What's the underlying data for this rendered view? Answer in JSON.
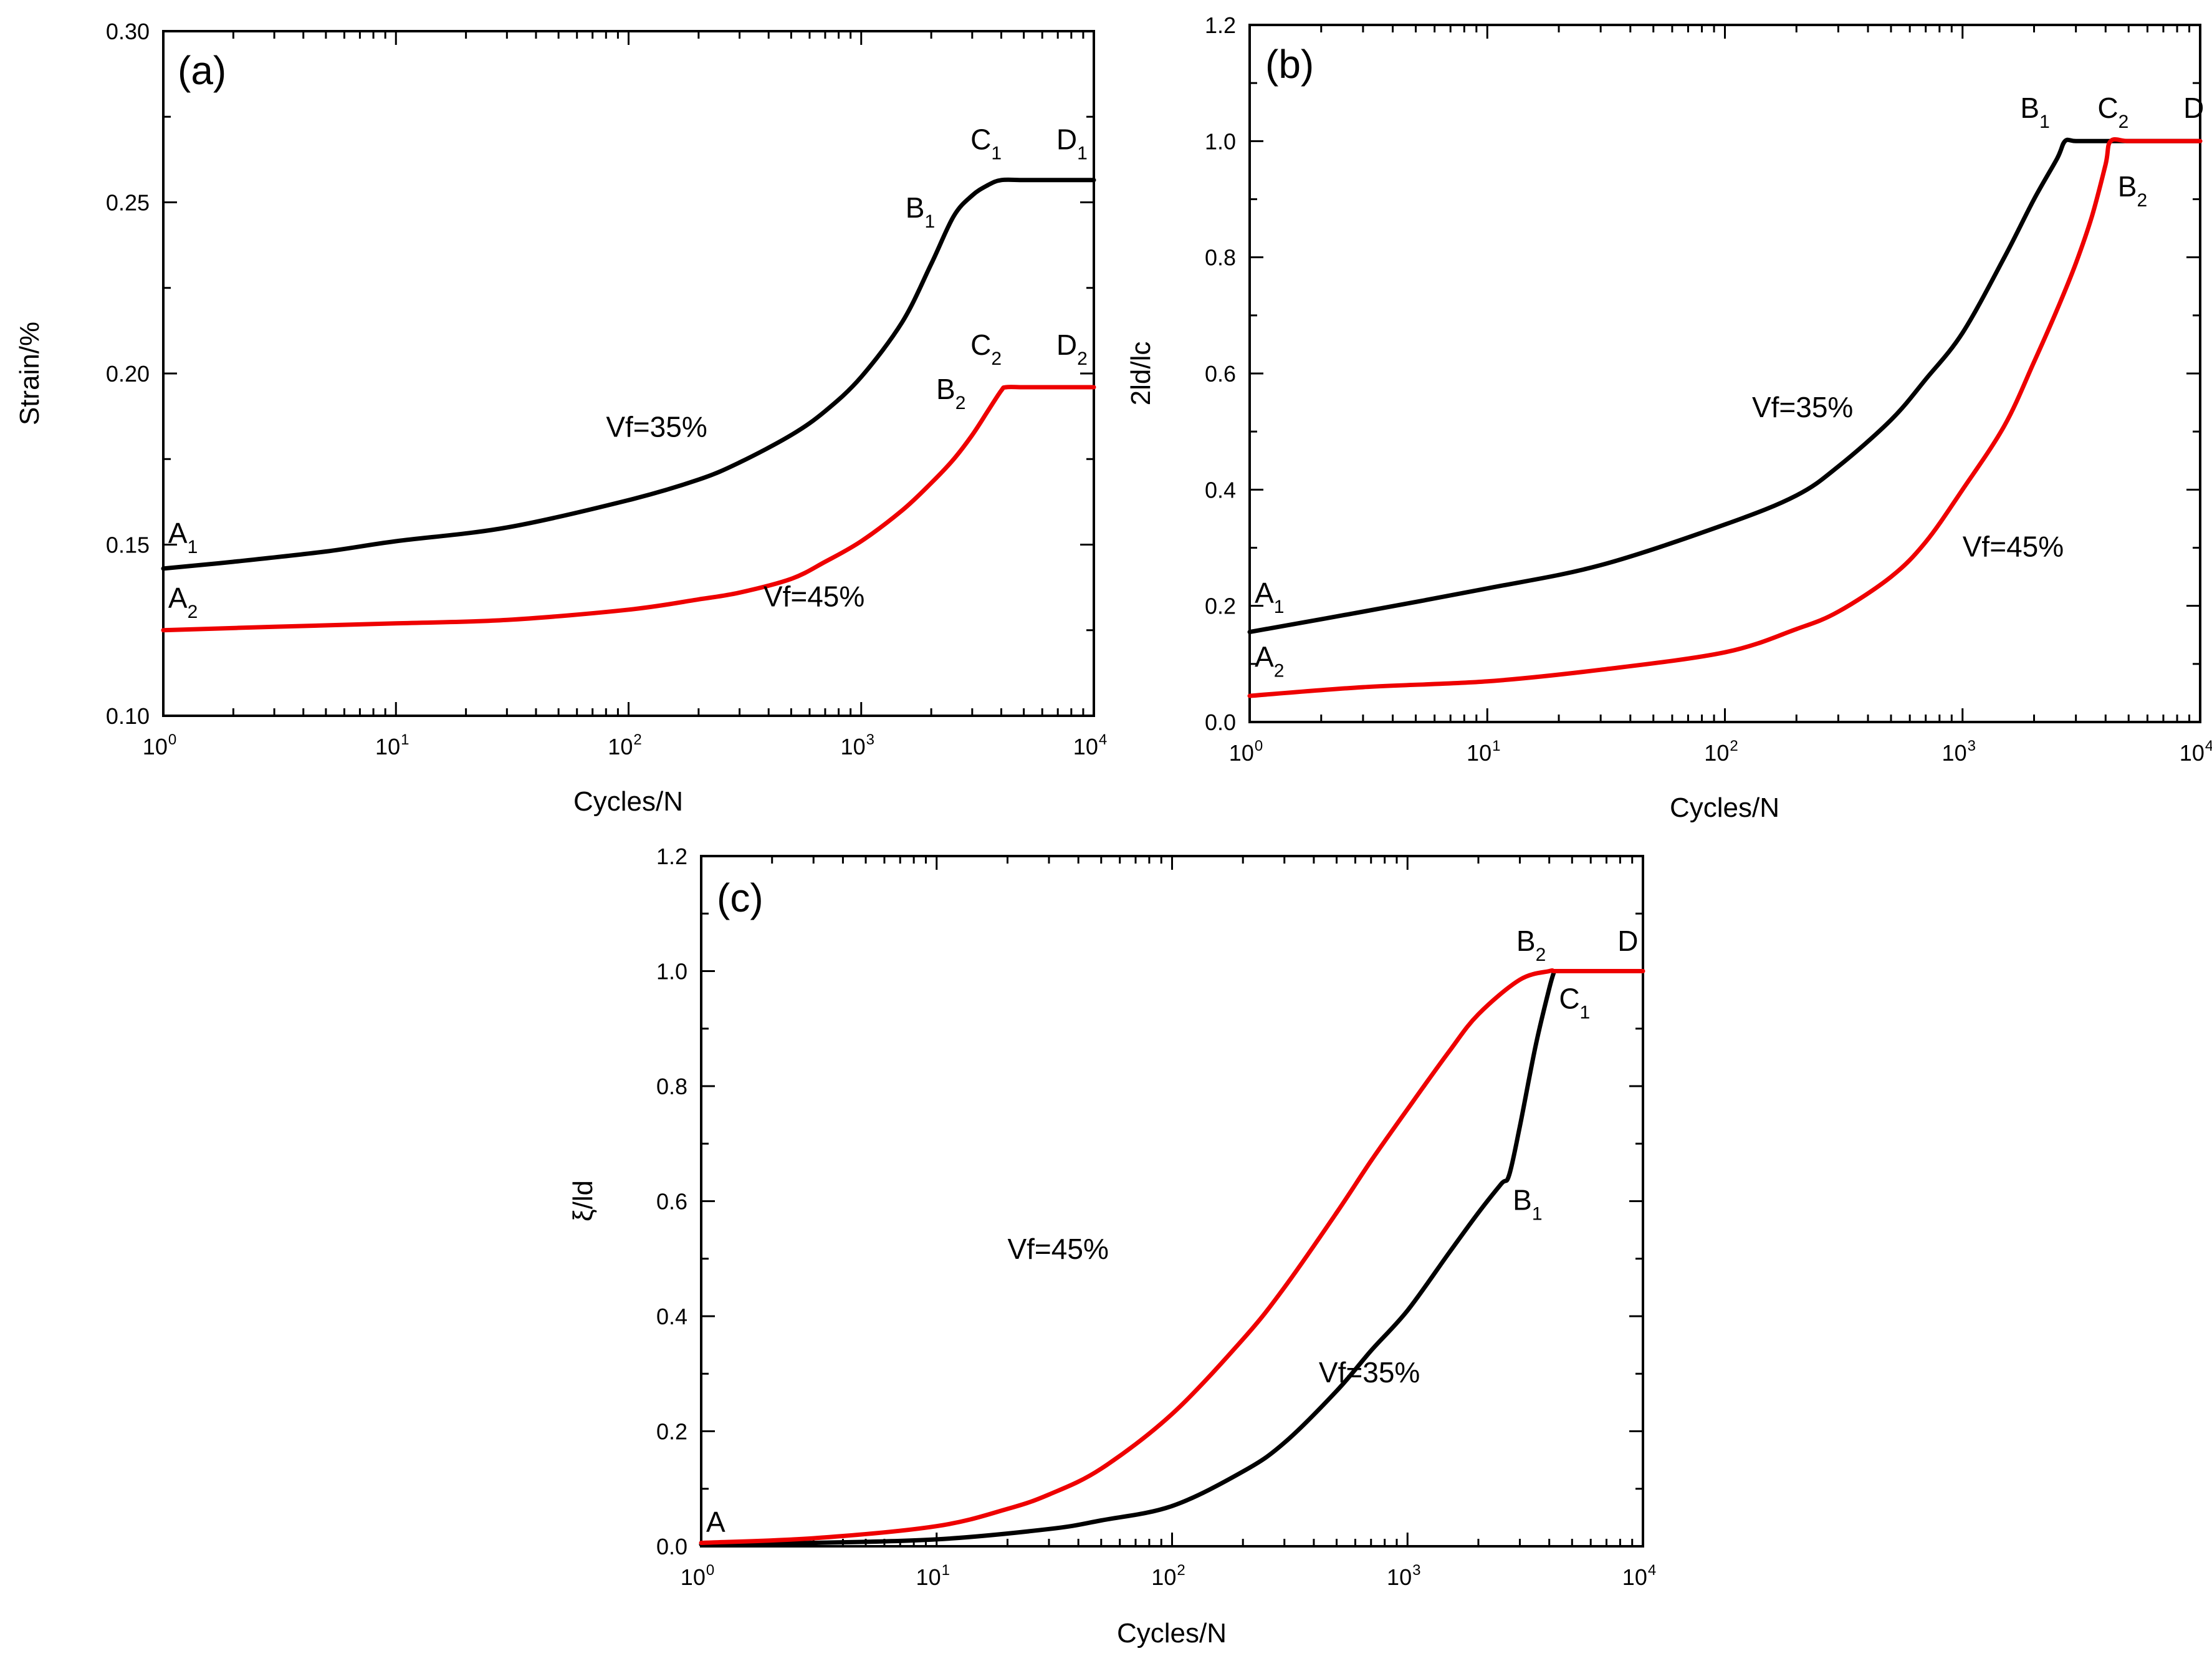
{
  "colors": {
    "black_series": "#000000",
    "red_series": "#ee0000"
  },
  "chart_data": [
    {
      "panel": "(a)",
      "type": "line",
      "xscale": "log",
      "xlabel": "Cycles/N",
      "ylabel": "Strain/%",
      "xlim": [
        1,
        10000
      ],
      "ylim": [
        0.1,
        0.3
      ],
      "xticks": [
        {
          "base": "10",
          "exp": "0",
          "value": 1
        },
        {
          "base": "10",
          "exp": "1",
          "value": 10
        },
        {
          "base": "10",
          "exp": "2",
          "value": 100
        },
        {
          "base": "10",
          "exp": "3",
          "value": 1000
        },
        {
          "base": "10",
          "exp": "4",
          "value": 10000
        }
      ],
      "yticks": [
        "0.10",
        "0.15",
        "0.20",
        "0.25",
        "0.30"
      ],
      "series": [
        {
          "name": "Vf=35%",
          "color": "#000000",
          "x": [
            1,
            2,
            5,
            10,
            30,
            100,
            200,
            300,
            500,
            700,
            1000,
            1500,
            2000,
            2500,
            3000,
            3500,
            4000,
            5000,
            7000,
            10000
          ],
          "y": [
            0.143,
            0.145,
            0.148,
            0.151,
            0.155,
            0.163,
            0.169,
            0.174,
            0.182,
            0.189,
            0.199,
            0.215,
            0.232,
            0.246,
            0.252,
            0.255,
            0.2565,
            0.2565,
            0.2565,
            0.2565
          ]
        },
        {
          "name": "Vf=45%",
          "color": "#ee0000",
          "x": [
            1,
            3,
            10,
            30,
            100,
            200,
            300,
            500,
            700,
            1000,
            1500,
            2000,
            2500,
            3000,
            3500,
            4000,
            4200,
            5000,
            7000,
            10000
          ],
          "y": [
            0.125,
            0.126,
            0.127,
            0.128,
            0.131,
            0.134,
            0.136,
            0.14,
            0.145,
            0.151,
            0.16,
            0.168,
            0.175,
            0.182,
            0.189,
            0.195,
            0.196,
            0.196,
            0.196,
            0.196
          ]
        }
      ],
      "annotations": [
        {
          "main": "A",
          "sub": "1",
          "x": 1.05,
          "y": 0.1505
        },
        {
          "main": "A",
          "sub": "2",
          "x": 1.05,
          "y": 0.1315
        },
        {
          "main": "B",
          "sub": "1",
          "x": 1550,
          "y": 0.2455
        },
        {
          "main": "C",
          "sub": "1",
          "x": 2950,
          "y": 0.2655
        },
        {
          "main": "D",
          "sub": "1",
          "x": 6900,
          "y": 0.2655
        },
        {
          "main": "C",
          "sub": "2",
          "x": 2950,
          "y": 0.2055
        },
        {
          "main": "B",
          "sub": "2",
          "x": 2100,
          "y": 0.1925
        },
        {
          "main": "D",
          "sub": "2",
          "x": 6900,
          "y": 0.2055
        },
        {
          "main": "Vf=35%",
          "sub": "",
          "x": 80,
          "y": 0.1815
        },
        {
          "main": "Vf=45%",
          "sub": "",
          "x": 380,
          "y": 0.132
        }
      ]
    },
    {
      "panel": "(b)",
      "type": "line",
      "xscale": "log",
      "xlabel": "Cycles/N",
      "ylabel": "2ld/lc",
      "xlim": [
        1,
        10000
      ],
      "ylim": [
        0.0,
        1.2
      ],
      "xticks": [
        {
          "base": "10",
          "exp": "0",
          "value": 1
        },
        {
          "base": "10",
          "exp": "1",
          "value": 10
        },
        {
          "base": "10",
          "exp": "2",
          "value": 100
        },
        {
          "base": "10",
          "exp": "3",
          "value": 1000
        },
        {
          "base": "10",
          "exp": "4",
          "value": 10000
        }
      ],
      "yticks": [
        "0.0",
        "0.2",
        "0.4",
        "0.6",
        "0.8",
        "1.0",
        "1.2"
      ],
      "series": [
        {
          "name": "Vf=35%",
          "color": "#000000",
          "x": [
            1,
            3,
            10,
            30,
            100,
            200,
            300,
            500,
            700,
            1000,
            1500,
            2000,
            2500,
            2700,
            3000,
            4000,
            5000,
            7000,
            10000
          ],
          "y": [
            0.155,
            0.19,
            0.23,
            0.27,
            0.34,
            0.39,
            0.44,
            0.52,
            0.59,
            0.67,
            0.8,
            0.9,
            0.97,
            1.0,
            1.0,
            1.0,
            1.0,
            1.0,
            1.0
          ]
        },
        {
          "name": "Vf=45%",
          "color": "#ee0000",
          "x": [
            1,
            3,
            10,
            30,
            100,
            200,
            300,
            500,
            700,
            1000,
            1500,
            2000,
            2500,
            3000,
            3500,
            4000,
            4200,
            5000,
            7000,
            10000
          ],
          "y": [
            0.045,
            0.06,
            0.07,
            0.09,
            0.12,
            0.16,
            0.19,
            0.25,
            0.31,
            0.4,
            0.51,
            0.62,
            0.71,
            0.79,
            0.87,
            0.96,
            1.0,
            1.0,
            1.0,
            1.0
          ]
        }
      ],
      "annotations": [
        {
          "main": "A",
          "sub": "1",
          "x": 1.05,
          "y": 0.205
        },
        {
          "main": "A",
          "sub": "2",
          "x": 1.05,
          "y": 0.095
        },
        {
          "main": "B",
          "sub": "1",
          "x": 1750,
          "y": 1.04
        },
        {
          "main": "C",
          "sub": "2",
          "x": 3700,
          "y": 1.04
        },
        {
          "main": "D",
          "sub": "",
          "x": 8500,
          "y": 1.04
        },
        {
          "main": "B",
          "sub": "2",
          "x": 4500,
          "y": 0.905
        },
        {
          "main": "Vf=35%",
          "sub": "",
          "x": 130,
          "y": 0.525
        },
        {
          "main": "Vf=45%",
          "sub": "",
          "x": 1000,
          "y": 0.285
        }
      ]
    },
    {
      "panel": "(c)",
      "type": "line",
      "xscale": "log",
      "xlabel": "Cycles/N",
      "ylabel": "ξ/ld",
      "xlim": [
        1,
        10000
      ],
      "ylim": [
        0.0,
        1.2
      ],
      "xticks": [
        {
          "base": "10",
          "exp": "0",
          "value": 1
        },
        {
          "base": "10",
          "exp": "1",
          "value": 10
        },
        {
          "base": "10",
          "exp": "2",
          "value": 100
        },
        {
          "base": "10",
          "exp": "3",
          "value": 1000
        },
        {
          "base": "10",
          "exp": "4",
          "value": 10000
        }
      ],
      "yticks": [
        "0.0",
        "0.2",
        "0.4",
        "0.6",
        "0.8",
        "1.0",
        "1.2"
      ],
      "series": [
        {
          "name": "Vf=35%",
          "color": "#000000",
          "x": [
            1,
            3,
            10,
            30,
            50,
            100,
            200,
            300,
            500,
            700,
            1000,
            1500,
            2000,
            2500,
            2700,
            3000,
            3500,
            4000,
            4200
          ],
          "y": [
            0.003,
            0.006,
            0.012,
            0.03,
            0.045,
            0.07,
            0.13,
            0.18,
            0.27,
            0.34,
            0.41,
            0.51,
            0.58,
            0.63,
            0.645,
            0.73,
            0.87,
            0.97,
            1.0
          ]
        },
        {
          "name": "Vf=45%",
          "color": "#ee0000",
          "x": [
            1,
            3,
            10,
            20,
            30,
            50,
            100,
            200,
            300,
            500,
            700,
            1000,
            1500,
            2000,
            3000,
            4000,
            4200,
            5000,
            7000,
            10000
          ],
          "y": [
            0.006,
            0.014,
            0.035,
            0.065,
            0.09,
            0.135,
            0.23,
            0.36,
            0.45,
            0.58,
            0.67,
            0.76,
            0.86,
            0.925,
            0.985,
            1.0,
            1.0,
            1.0,
            1.0,
            1.0
          ]
        }
      ],
      "annotations": [
        {
          "main": "A",
          "sub": "",
          "x": 1.05,
          "y": 0.025
        },
        {
          "main": "B",
          "sub": "2",
          "x": 2900,
          "y": 1.035
        },
        {
          "main": "D",
          "sub": "",
          "x": 7800,
          "y": 1.035
        },
        {
          "main": "C",
          "sub": "1",
          "x": 4400,
          "y": 0.935
        },
        {
          "main": "B",
          "sub": "1",
          "x": 2800,
          "y": 0.585
        },
        {
          "main": "Vf=45%",
          "sub": "",
          "x": 20,
          "y": 0.5
        },
        {
          "main": "Vf=35%",
          "sub": "",
          "x": 420,
          "y": 0.285
        }
      ]
    }
  ]
}
